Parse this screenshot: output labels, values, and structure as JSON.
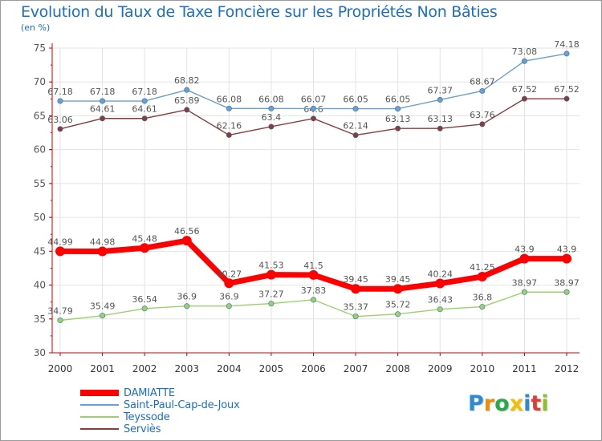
{
  "title": "Evolution du Taux de Taxe Foncière sur les Propriétés Non Bâties",
  "unit": "(en %)",
  "brand": {
    "letters": [
      "P",
      "r",
      "o",
      "x",
      "i",
      "t",
      "i"
    ],
    "colors": [
      "#2a8ad4",
      "#f08c00",
      "#2aa84a",
      "#f0c000",
      "#2a8ad4",
      "#e03a3a",
      "#8abf2a"
    ]
  },
  "chart_data": {
    "type": "line",
    "title": "Evolution du Taux de Taxe Foncière sur les Propriétés Non Bâties",
    "ylabel": "(en %)",
    "xlabel": "",
    "ylim": [
      30,
      75
    ],
    "yticks": [
      30,
      35,
      40,
      45,
      50,
      55,
      60,
      65,
      70,
      75
    ],
    "grid": true,
    "categories": [
      "2000",
      "2001",
      "2002",
      "2003",
      "2004",
      "2005",
      "2006",
      "2007",
      "2008",
      "2009",
      "2010",
      "2011",
      "2012"
    ],
    "series": [
      {
        "name": "DAMIATTE",
        "color": "#ff0000",
        "values": [
          44.99,
          44.98,
          45.48,
          46.56,
          40.27,
          41.53,
          41.5,
          39.45,
          39.45,
          40.24,
          41.25,
          43.9,
          43.9
        ],
        "labels": [
          "44.99",
          "44.98",
          "45.48",
          "46.56",
          "40.27",
          "41.53",
          "41.5",
          "39.45",
          "39.45",
          "40.24",
          "41.25",
          "43.9",
          "43.9"
        ]
      },
      {
        "name": "Saint-Paul-Cap-de-Joux",
        "color": "#6a9fd0",
        "values": [
          67.18,
          67.18,
          67.18,
          68.82,
          66.08,
          66.08,
          66.07,
          66.05,
          66.05,
          67.37,
          68.67,
          73.08,
          74.18
        ],
        "labels": [
          "67.18",
          "67.18",
          "67.18",
          "68.82",
          "66.08",
          "66.08",
          "66.07",
          "66.05",
          "66.05",
          "67.37",
          "68.67",
          "73.08",
          "74.18"
        ]
      },
      {
        "name": "Teyssode",
        "color": "#99d36b",
        "values": [
          34.79,
          35.49,
          36.54,
          36.9,
          36.9,
          37.27,
          37.83,
          35.37,
          35.72,
          36.43,
          36.8,
          38.97,
          38.97
        ],
        "labels": [
          "34.79",
          "35.49",
          "36.54",
          "36.9",
          "36.9",
          "37.27",
          "37.83",
          "35.37",
          "35.72",
          "36.43",
          "36.8",
          "38.97",
          "38.97"
        ]
      },
      {
        "name": "Serviès",
        "color": "#8b3b3b",
        "values": [
          63.06,
          64.61,
          64.61,
          65.89,
          62.16,
          63.4,
          64.6,
          62.14,
          63.13,
          63.13,
          63.76,
          67.52,
          67.52
        ],
        "labels": [
          "63.06",
          "64.61",
          "64.61",
          "65.89",
          "62.16",
          "63.4",
          "64.6",
          "62.14",
          "63.13",
          "63.13",
          "63.76",
          "67.52",
          "67.52"
        ]
      }
    ],
    "legend": [
      {
        "name": "DAMIATTE",
        "color": "#ff0000"
      },
      {
        "name": "Saint-Paul-Cap-de-Joux",
        "color": "#6a9fd0"
      },
      {
        "name": "Teyssode",
        "color": "#99d36b"
      },
      {
        "name": "Serviès",
        "color": "#8b3b3b"
      }
    ]
  }
}
